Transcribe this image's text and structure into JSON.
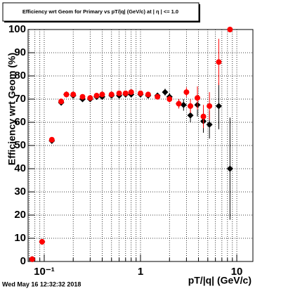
{
  "chart_data": {
    "type": "scatter",
    "title": "Efficiency wrt Geom for Primary vs pT/|q| (GeV/c) at | η | <= 1.0",
    "ylabel": "Efficiency wrt Geom (%)",
    "xlabel": "pT/|q| (GeV/c)",
    "footer": "Wed May 16 12:32:32 2018",
    "xlog": true,
    "grid": true,
    "xlim": [
      0.068,
      14.7
    ],
    "ylim": [
      0,
      100
    ],
    "xticks": [
      {
        "value": 0.1,
        "label": "10⁻¹"
      },
      1,
      10
    ],
    "xminorticks": [
      0.07,
      0.08,
      0.09,
      0.2,
      0.3,
      0.4,
      0.5,
      0.6,
      0.7,
      0.8,
      0.9,
      2,
      3,
      4,
      5,
      6,
      7,
      8,
      9
    ],
    "yticks": [
      0,
      10,
      20,
      30,
      40,
      50,
      60,
      70,
      80,
      90,
      100
    ],
    "series": [
      {
        "color": "#000000",
        "marker": "diamond",
        "x": [
          0.075,
          0.095,
          0.12,
          0.15,
          0.17,
          0.2,
          0.25,
          0.3,
          0.35,
          0.4,
          0.5,
          0.6,
          0.7,
          0.8,
          1,
          1.2,
          1.5,
          1.8,
          2,
          2.5,
          2.8,
          3.3,
          3.9,
          4.5,
          5.2,
          6.5,
          8.5
        ],
        "values": [
          1,
          8.5,
          52,
          68.5,
          72,
          71.5,
          70,
          70,
          71,
          71,
          71.5,
          71.5,
          72,
          72,
          72,
          71.5,
          71.5,
          73,
          71,
          68,
          67.5,
          63,
          67.5,
          60.5,
          59,
          67,
          40
        ],
        "errors": [
          0.5,
          1,
          1,
          1,
          1,
          1,
          1,
          1,
          1,
          1,
          1,
          1,
          1,
          1,
          1,
          1,
          1,
          1.5,
          1.5,
          2,
          2.5,
          3,
          5,
          5,
          6,
          10,
          22
        ]
      },
      {
        "color": "#ff0000",
        "marker": "circle",
        "x": [
          0.075,
          0.095,
          0.12,
          0.15,
          0.17,
          0.2,
          0.25,
          0.3,
          0.35,
          0.4,
          0.5,
          0.6,
          0.7,
          0.8,
          1,
          1.2,
          1.5,
          2,
          2.5,
          3,
          3.3,
          3.9,
          4.5,
          5.2,
          6.5,
          8.5
        ],
        "values": [
          1,
          8.5,
          52.5,
          69,
          72,
          72,
          71,
          70.5,
          71.5,
          72,
          72,
          72.5,
          72.5,
          73,
          72.5,
          72,
          71,
          70,
          68,
          73,
          67,
          70.5,
          62.5,
          67,
          86,
          100
        ],
        "errors": [
          0.5,
          1,
          1,
          1,
          1,
          1,
          1,
          1,
          1,
          1,
          1,
          1,
          1,
          1,
          1,
          1,
          1,
          1.5,
          2,
          2,
          3,
          5,
          5,
          6,
          10,
          0
        ]
      }
    ]
  }
}
